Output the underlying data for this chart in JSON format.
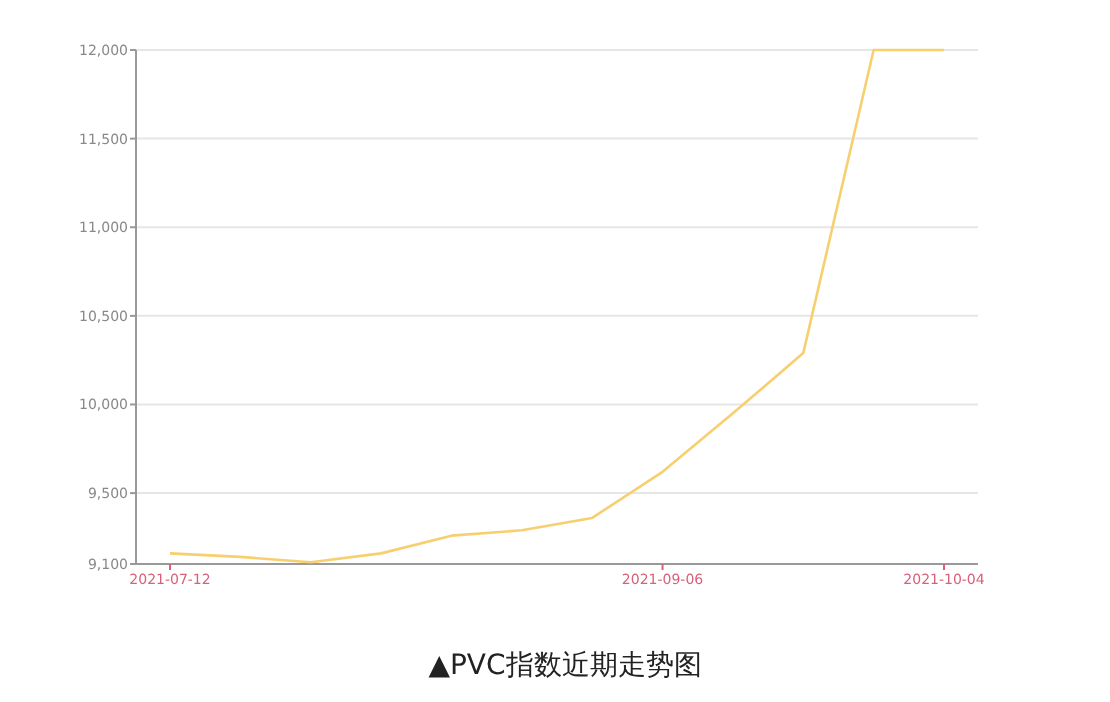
{
  "chart_data": {
    "type": "line",
    "title": "▲PVC指数近期走势图",
    "categories": [
      "2021-07-12",
      null,
      null,
      null,
      null,
      null,
      null,
      "2021-09-06",
      null,
      null,
      null,
      "2021-10-04"
    ],
    "series": [
      {
        "color": "#f7cf6f",
        "values": [
          9160,
          9140,
          9110,
          9160,
          9260,
          9290,
          9360,
          9620,
          9950,
          10290,
          12000,
          12000
        ]
      }
    ],
    "ylim": [
      9100,
      12000
    ],
    "yticks": [
      {
        "value": 9100,
        "label": "9,100"
      },
      {
        "value": 9500,
        "label": "9,500"
      },
      {
        "value": 10000,
        "label": "10,000"
      },
      {
        "value": 10500,
        "label": "10,500"
      },
      {
        "value": 11000,
        "label": "11,000"
      },
      {
        "value": 11500,
        "label": "11,500"
      },
      {
        "value": 12000,
        "label": "12,000"
      }
    ],
    "grid": "y",
    "marker": "none",
    "line_style": "solid"
  }
}
